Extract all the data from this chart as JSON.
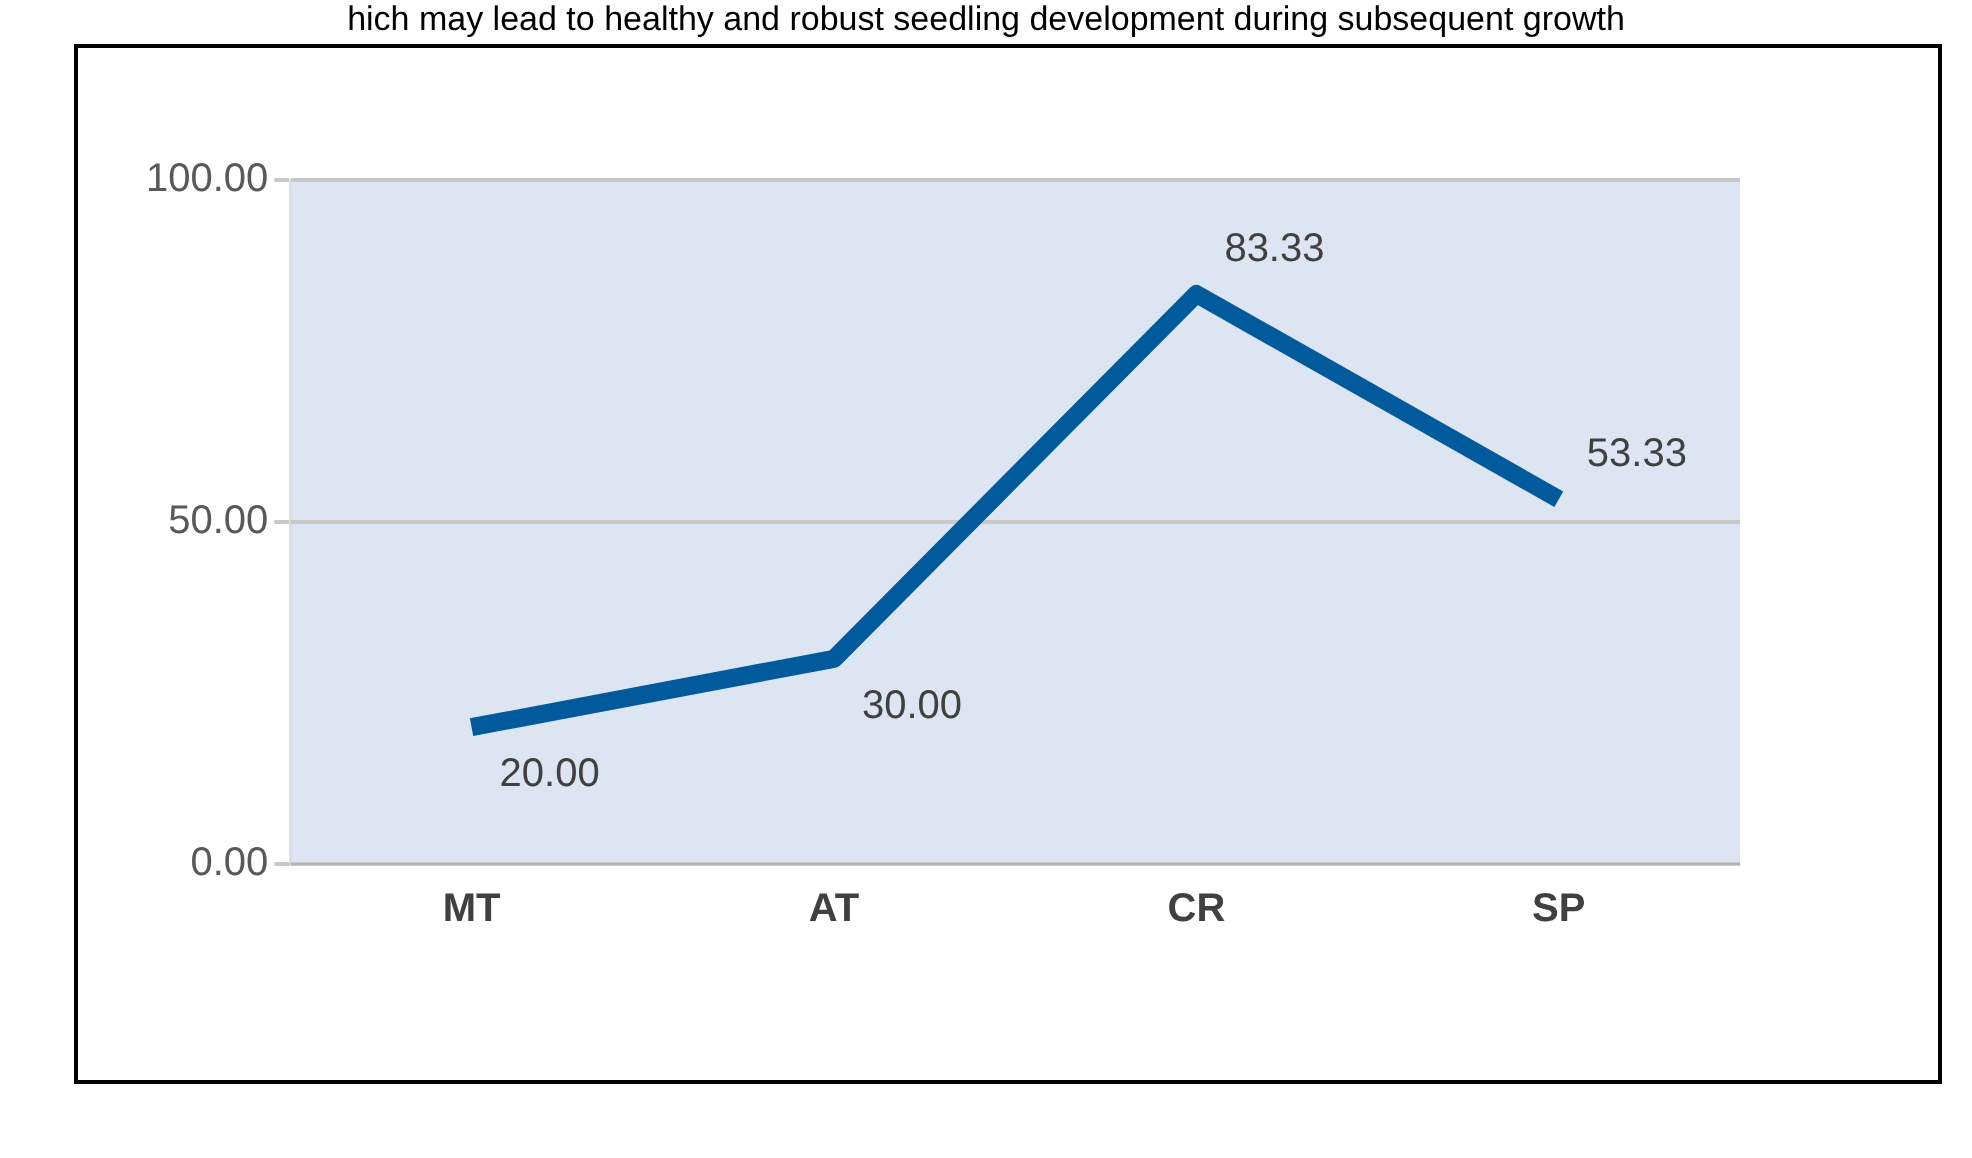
{
  "chart_data": {
    "type": "line",
    "annotations": [
      "hich may lead to healthy and robust seedling development during subsequent growth"
    ],
    "categories": [
      "MT",
      "AT",
      "CR",
      "SP"
    ],
    "series": [
      {
        "color": "#005a9c",
        "values": [
          20,
          30,
          83.33,
          53.33
        ],
        "value_labels": [
          "20.00",
          "30.00",
          "83.33",
          "53.33"
        ]
      }
    ],
    "ylim": [
      0,
      100
    ],
    "yticks": [
      {
        "value": 0,
        "label": "0.00"
      },
      {
        "value": 50,
        "label": "50.00"
      },
      {
        "value": 100,
        "label": "100.00"
      }
    ],
    "grid": "y",
    "legend": false,
    "marker": "none",
    "line_style": "solid"
  }
}
